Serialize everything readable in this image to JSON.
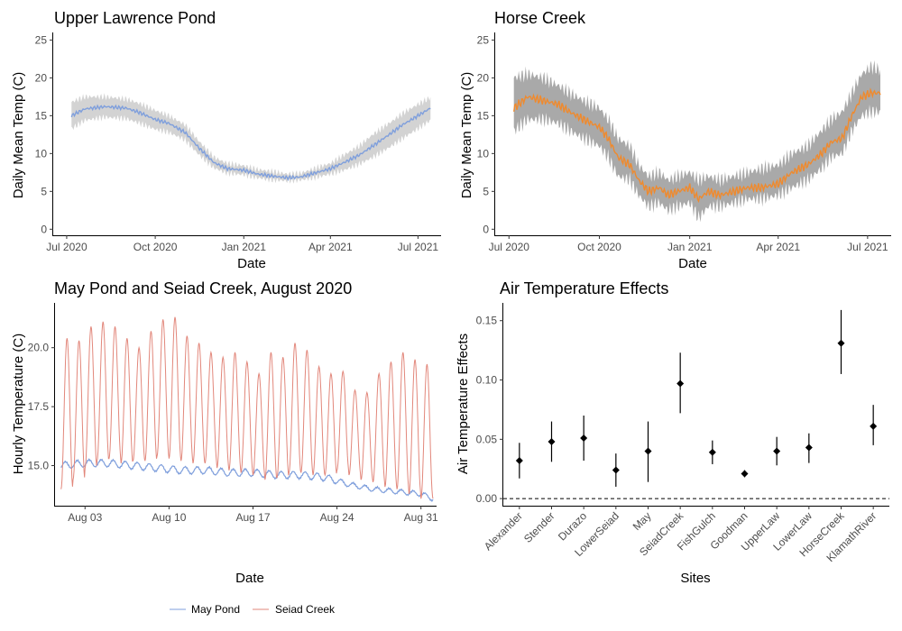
{
  "colors": {
    "upper_lawrence_line": "#7f9fdc",
    "upper_lawrence_band": "#d3d3d3",
    "horse_creek_line": "#ef8a2e",
    "horse_creek_band": "#a9a9a9",
    "may_pond": "#7f9fdc",
    "seiad_creek": "#e2877b",
    "effects_points": "#000000"
  },
  "chart_data": [
    {
      "id": "upper_lawrence",
      "type": "area",
      "title": "Upper Lawrence Pond",
      "xlabel": "Date",
      "ylabel": "Daily Mean Temp (C)",
      "x_ticks": [
        "Jul 2020",
        "Oct 2020",
        "Jan 2021",
        "Apr 2021",
        "Jul 2021"
      ],
      "y_ticks": [
        "0",
        "5",
        "10",
        "15",
        "20",
        "25"
      ],
      "ylim": [
        -0.8,
        26
      ],
      "xlim": [
        "2020-06-17",
        "2021-07-25"
      ],
      "grid": false,
      "series": [
        {
          "name": "",
          "x": [
            "2020-07-06",
            "2020-07-20",
            "2020-08-10",
            "2020-09-01",
            "2020-09-15",
            "2020-10-01",
            "2020-10-15",
            "2020-11-01",
            "2020-11-15",
            "2020-12-01",
            "2020-12-15",
            "2021-01-01",
            "2021-01-15",
            "2021-02-01",
            "2021-02-15",
            "2021-03-01",
            "2021-03-15",
            "2021-04-01",
            "2021-04-15",
            "2021-05-01",
            "2021-05-15",
            "2021-06-01",
            "2021-06-15",
            "2021-07-01",
            "2021-07-14"
          ],
          "values": [
            15.0,
            15.9,
            16.2,
            16.0,
            15.4,
            14.5,
            14.0,
            12.8,
            10.8,
            8.8,
            8.0,
            7.8,
            7.3,
            7.0,
            6.8,
            6.9,
            7.4,
            8.0,
            8.8,
            9.8,
            11.0,
            12.5,
            13.8,
            15.0,
            16.0
          ],
          "lower": [
            13.3,
            14.4,
            14.8,
            14.6,
            14.0,
            13.2,
            12.8,
            11.8,
            9.9,
            8.1,
            7.4,
            7.2,
            6.8,
            6.5,
            6.4,
            6.5,
            6.8,
            7.3,
            7.8,
            8.6,
            9.5,
            10.8,
            12.0,
            13.3,
            14.4
          ],
          "upper": [
            16.8,
            17.5,
            17.5,
            17.2,
            16.6,
            15.7,
            15.0,
            13.8,
            11.7,
            9.5,
            8.7,
            8.4,
            7.9,
            7.6,
            7.3,
            7.4,
            8.0,
            8.7,
            9.8,
            11.0,
            12.5,
            14.0,
            15.3,
            16.5,
            17.4
          ]
        }
      ]
    },
    {
      "id": "horse_creek",
      "type": "area",
      "title": "Horse Creek",
      "xlabel": "Date",
      "ylabel": "Daily Mean Temp (C)",
      "x_ticks": [
        "Jul 2020",
        "Oct 2020",
        "Jan 2021",
        "Apr 2021",
        "Jul 2021"
      ],
      "y_ticks": [
        "0",
        "5",
        "10",
        "15",
        "20",
        "25"
      ],
      "ylim": [
        -0.8,
        26
      ],
      "xlim": [
        "2020-06-17",
        "2021-07-25"
      ],
      "grid": false,
      "series": [
        {
          "name": "",
          "x": [
            "2020-07-06",
            "2020-07-20",
            "2020-08-05",
            "2020-08-20",
            "2020-09-01",
            "2020-09-15",
            "2020-10-01",
            "2020-10-10",
            "2020-10-20",
            "2020-11-01",
            "2020-11-10",
            "2020-11-20",
            "2020-12-01",
            "2020-12-10",
            "2020-12-20",
            "2021-01-01",
            "2021-01-10",
            "2021-01-20",
            "2021-02-01",
            "2021-02-15",
            "2021-03-01",
            "2021-03-15",
            "2021-04-01",
            "2021-04-15",
            "2021-05-01",
            "2021-05-15",
            "2021-05-25",
            "2021-06-05",
            "2021-06-15",
            "2021-06-25",
            "2021-07-05",
            "2021-07-14"
          ],
          "values": [
            16.0,
            17.5,
            17.0,
            16.5,
            15.5,
            14.5,
            13.5,
            12.0,
            9.5,
            8.5,
            6.5,
            5.0,
            5.5,
            4.5,
            5.0,
            5.5,
            4.0,
            5.0,
            4.5,
            5.0,
            5.5,
            5.5,
            6.0,
            7.5,
            8.5,
            10.0,
            11.5,
            12.0,
            15.0,
            17.5,
            18.0,
            18.0
          ],
          "lower": [
            13.0,
            14.5,
            14.5,
            14.0,
            13.0,
            12.0,
            11.0,
            9.5,
            7.0,
            6.5,
            4.5,
            3.0,
            3.5,
            2.5,
            3.0,
            3.5,
            1.5,
            3.0,
            3.0,
            3.5,
            4.0,
            4.0,
            4.5,
            5.5,
            6.5,
            8.0,
            9.5,
            10.0,
            13.0,
            15.0,
            15.5,
            15.5
          ],
          "upper": [
            20.0,
            20.5,
            20.0,
            19.0,
            18.0,
            17.0,
            16.0,
            14.5,
            12.0,
            11.0,
            8.5,
            7.0,
            7.5,
            6.5,
            7.0,
            7.5,
            6.5,
            7.0,
            6.5,
            7.0,
            7.5,
            8.0,
            8.5,
            10.0,
            11.0,
            13.0,
            14.5,
            15.5,
            18.0,
            20.5,
            21.5,
            21.0
          ]
        }
      ]
    },
    {
      "id": "may_seiad",
      "type": "line",
      "title": "May Pond and Seiad Creek, August 2020",
      "xlabel": "Date",
      "ylabel": "Hourly Temperature (C)",
      "x_ticks": [
        "Aug 03",
        "Aug 10",
        "Aug 17",
        "Aug 24",
        "Aug 31"
      ],
      "y_ticks": [
        "15.0",
        "17.5",
        "20.0"
      ],
      "ylim": [
        13.3,
        21.9
      ],
      "xlim": [
        0.5,
        32.3
      ],
      "x_unit": "day of August 2020",
      "grid": false,
      "legend": "bottom",
      "series": [
        {
          "name": "May Pond",
          "x": [
            1.0,
            3.0,
            5.0,
            7.0,
            9.0,
            11.0,
            13.0,
            15.0,
            17.0,
            19.0,
            21.0,
            23.0,
            25.0,
            27.0,
            29.0,
            31.0,
            32.0
          ],
          "values": [
            15.0,
            15.1,
            15.1,
            15.0,
            14.9,
            14.8,
            14.8,
            14.7,
            14.7,
            14.6,
            14.6,
            14.5,
            14.2,
            14.0,
            13.9,
            13.8,
            13.6
          ],
          "daily_amplitude": [
            0.15,
            0.15,
            0.15,
            0.15,
            0.15,
            0.15,
            0.15,
            0.15,
            0.15,
            0.15,
            0.15,
            0.15,
            0.1,
            0.1,
            0.1,
            0.1,
            0.1
          ]
        },
        {
          "name": "Seiad Creek",
          "x": [
            1.5,
            2.5,
            3.5,
            4.5,
            5.5,
            6.5,
            7.5,
            8.5,
            9.5,
            10.5,
            11.5,
            12.5,
            13.5,
            14.5,
            15.5,
            16.5,
            17.5,
            18.5,
            19.5,
            20.5,
            21.5,
            22.5,
            23.5,
            24.5,
            25.5,
            26.5,
            27.5,
            28.5,
            29.5,
            30.5,
            31.5
          ],
          "values": [
            20.4,
            20.3,
            20.9,
            21.1,
            20.9,
            20.4,
            20.0,
            20.7,
            21.2,
            21.3,
            20.5,
            20.2,
            19.8,
            19.6,
            19.8,
            19.4,
            18.9,
            19.8,
            19.6,
            20.2,
            19.9,
            19.2,
            18.9,
            19.0,
            18.2,
            18.1,
            18.9,
            19.4,
            19.8,
            19.5,
            19.3
          ],
          "minima": [
            14.0,
            14.4,
            14.9,
            15.2,
            15.3,
            15.1,
            15.2,
            15.2,
            15.4,
            15.3,
            15.2,
            15.1,
            15.1,
            14.9,
            14.8,
            14.7,
            14.6,
            14.4,
            14.5,
            14.7,
            14.7,
            14.6,
            14.6,
            14.8,
            14.6,
            14.4,
            14.3,
            14.1,
            14.0,
            13.8,
            13.6
          ]
        }
      ]
    },
    {
      "id": "air_temp_effects",
      "type": "scatter",
      "title": "Air Temperature Effects",
      "xlabel": "Sites",
      "ylabel": "Air Temperature Effects",
      "categories": [
        "Alexander",
        "Stender",
        "Durazo",
        "LowerSeiad",
        "May",
        "SeiadCreek",
        "FishGulch",
        "Goodman",
        "UpperLaw",
        "LowerLaw",
        "HorseCreek",
        "KlamathRiver"
      ],
      "y_ticks": [
        "0.00",
        "0.05",
        "0.10",
        "0.15"
      ],
      "ylim": [
        -0.006,
        0.165
      ],
      "reference_line": 0,
      "grid": false,
      "series": [
        {
          "name": "",
          "values": [
            0.032,
            0.048,
            0.051,
            0.024,
            0.04,
            0.097,
            0.039,
            0.021,
            0.04,
            0.043,
            0.131,
            0.061
          ],
          "lower": [
            0.017,
            0.031,
            0.032,
            0.01,
            0.014,
            0.072,
            0.029,
            0.018,
            0.028,
            0.03,
            0.105,
            0.045
          ],
          "upper": [
            0.047,
            0.065,
            0.07,
            0.038,
            0.065,
            0.123,
            0.049,
            0.024,
            0.052,
            0.055,
            0.159,
            0.079
          ]
        }
      ]
    }
  ]
}
